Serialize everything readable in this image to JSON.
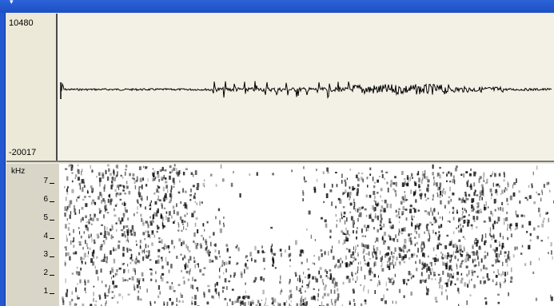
{
  "waveform": {
    "y_max_label": "10480",
    "y_min_label": "-20017"
  },
  "spectrogram": {
    "unit_label": "kHz",
    "ticks": [
      "7",
      "6",
      "5",
      "4",
      "3",
      "2",
      "1"
    ]
  },
  "colors": {
    "titlebar": "#2d63d8",
    "panel_bg": "#ece9d8",
    "wave": "#000000",
    "spec_ink": "#000000"
  }
}
